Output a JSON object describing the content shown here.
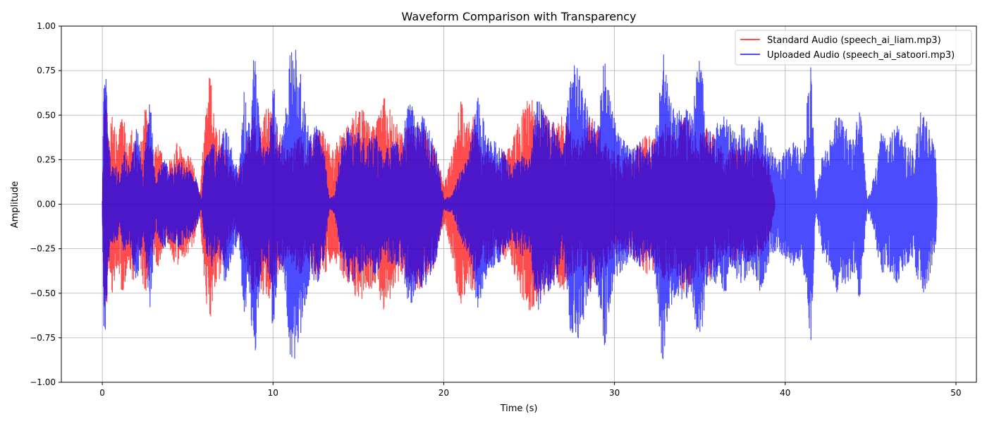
{
  "chart_data": {
    "type": "line",
    "title": "Waveform Comparison with Transparency",
    "xlabel": "Time (s)",
    "ylabel": "Amplitude",
    "xlim": [
      -2.4,
      51.2
    ],
    "ylim": [
      -1.0,
      1.0
    ],
    "x_ticks": [
      0,
      10,
      20,
      30,
      40,
      50
    ],
    "x_tick_labels": [
      "0",
      "10",
      "20",
      "30",
      "40",
      "50"
    ],
    "y_ticks": [
      -1.0,
      -0.75,
      -0.5,
      -0.25,
      0.0,
      0.25,
      0.5,
      0.75,
      1.0
    ],
    "y_tick_labels": [
      "−1.00",
      "−0.75",
      "−0.50",
      "−0.25",
      "0.00",
      "0.25",
      "0.50",
      "0.75",
      "1.00"
    ],
    "grid": true,
    "legend_position": "top-right",
    "series": [
      {
        "name": "Standard Audio (speech_ai_liam.mp3)",
        "color": "#ff0000",
        "opacity": 0.7,
        "duration": 39.4,
        "envelope": [
          [
            0.0,
            0.02
          ],
          [
            0.1,
            0.6
          ],
          [
            0.2,
            0.65
          ],
          [
            0.4,
            0.4
          ],
          [
            0.6,
            0.5
          ],
          [
            0.9,
            0.35
          ],
          [
            1.2,
            0.55
          ],
          [
            1.5,
            0.3
          ],
          [
            1.8,
            0.45
          ],
          [
            2.1,
            0.25
          ],
          [
            2.6,
            0.6
          ],
          [
            2.9,
            0.3
          ],
          [
            3.3,
            0.35
          ],
          [
            3.8,
            0.2
          ],
          [
            4.3,
            0.35
          ],
          [
            4.8,
            0.3
          ],
          [
            5.3,
            0.25
          ],
          [
            5.7,
            0.05
          ],
          [
            6.0,
            0.45
          ],
          [
            6.3,
            0.75
          ],
          [
            6.6,
            0.45
          ],
          [
            7.0,
            0.4
          ],
          [
            7.4,
            0.25
          ],
          [
            7.8,
            0.15
          ],
          [
            8.3,
            0.3
          ],
          [
            8.8,
            0.5
          ],
          [
            9.2,
            0.45
          ],
          [
            9.6,
            0.55
          ],
          [
            10.0,
            0.5
          ],
          [
            10.4,
            0.4
          ],
          [
            10.8,
            0.3
          ],
          [
            11.2,
            0.35
          ],
          [
            11.6,
            0.4
          ],
          [
            12.0,
            0.3
          ],
          [
            12.5,
            0.45
          ],
          [
            13.0,
            0.4
          ],
          [
            13.5,
            0.3
          ],
          [
            14.0,
            0.4
          ],
          [
            14.5,
            0.45
          ],
          [
            15.0,
            0.55
          ],
          [
            15.5,
            0.5
          ],
          [
            16.0,
            0.45
          ],
          [
            16.5,
            0.6
          ],
          [
            17.0,
            0.5
          ],
          [
            17.5,
            0.4
          ],
          [
            18.0,
            0.45
          ],
          [
            18.5,
            0.5
          ],
          [
            19.0,
            0.4
          ],
          [
            19.5,
            0.35
          ],
          [
            20.0,
            0.1
          ],
          [
            20.5,
            0.3
          ],
          [
            21.0,
            0.6
          ],
          [
            21.4,
            0.45
          ],
          [
            21.8,
            0.5
          ],
          [
            22.2,
            0.3
          ],
          [
            22.6,
            0.35
          ],
          [
            23.0,
            0.25
          ],
          [
            23.5,
            0.3
          ],
          [
            24.0,
            0.35
          ],
          [
            24.5,
            0.5
          ],
          [
            25.0,
            0.6
          ],
          [
            25.5,
            0.55
          ],
          [
            26.0,
            0.5
          ],
          [
            26.5,
            0.45
          ],
          [
            27.0,
            0.5
          ],
          [
            27.5,
            0.4
          ],
          [
            28.0,
            0.35
          ],
          [
            28.5,
            0.5
          ],
          [
            29.0,
            0.45
          ],
          [
            29.5,
            0.35
          ],
          [
            30.0,
            0.3
          ],
          [
            30.5,
            0.25
          ],
          [
            31.0,
            0.3
          ],
          [
            31.5,
            0.35
          ],
          [
            32.0,
            0.4
          ],
          [
            32.5,
            0.35
          ],
          [
            33.0,
            0.45
          ],
          [
            33.5,
            0.4
          ],
          [
            34.0,
            0.5
          ],
          [
            34.5,
            0.45
          ],
          [
            35.0,
            0.4
          ],
          [
            35.5,
            0.45
          ],
          [
            36.0,
            0.35
          ],
          [
            36.5,
            0.3
          ],
          [
            37.0,
            0.35
          ],
          [
            37.5,
            0.3
          ],
          [
            38.0,
            0.35
          ],
          [
            38.5,
            0.3
          ],
          [
            39.0,
            0.25
          ],
          [
            39.4,
            0.02
          ]
        ]
      },
      {
        "name": "Uploaded Audio (speech_ai_satoori.mp3)",
        "color": "#0000ff",
        "opacity": 0.7,
        "duration": 48.9,
        "envelope": [
          [
            0.0,
            0.02
          ],
          [
            0.1,
            0.85
          ],
          [
            0.2,
            0.8
          ],
          [
            0.3,
            0.5
          ],
          [
            0.5,
            0.2
          ],
          [
            0.8,
            0.25
          ],
          [
            1.0,
            0.15
          ],
          [
            1.3,
            0.3
          ],
          [
            1.6,
            0.2
          ],
          [
            2.0,
            0.45
          ],
          [
            2.4,
            0.2
          ],
          [
            2.8,
            0.6
          ],
          [
            3.1,
            0.15
          ],
          [
            3.6,
            0.25
          ],
          [
            4.0,
            0.2
          ],
          [
            4.5,
            0.25
          ],
          [
            5.0,
            0.2
          ],
          [
            5.5,
            0.15
          ],
          [
            5.8,
            0.03
          ],
          [
            6.0,
            0.25
          ],
          [
            6.4,
            0.35
          ],
          [
            6.8,
            0.3
          ],
          [
            7.2,
            0.45
          ],
          [
            7.6,
            0.3
          ],
          [
            8.0,
            0.2
          ],
          [
            8.3,
            0.65
          ],
          [
            8.6,
            0.45
          ],
          [
            8.9,
            0.93
          ],
          [
            9.2,
            0.5
          ],
          [
            9.5,
            0.3
          ],
          [
            9.8,
            0.45
          ],
          [
            10.0,
            0.75
          ],
          [
            10.3,
            0.35
          ],
          [
            10.6,
            0.4
          ],
          [
            11.0,
            0.85
          ],
          [
            11.4,
            0.88
          ],
          [
            11.8,
            0.6
          ],
          [
            12.2,
            0.4
          ],
          [
            12.6,
            0.45
          ],
          [
            13.0,
            0.3
          ],
          [
            13.3,
            0.03
          ],
          [
            13.6,
            0.05
          ],
          [
            14.0,
            0.35
          ],
          [
            14.5,
            0.45
          ],
          [
            15.0,
            0.4
          ],
          [
            15.5,
            0.35
          ],
          [
            16.0,
            0.4
          ],
          [
            16.5,
            0.3
          ],
          [
            17.0,
            0.35
          ],
          [
            17.5,
            0.35
          ],
          [
            18.0,
            0.6
          ],
          [
            18.4,
            0.45
          ],
          [
            18.8,
            0.5
          ],
          [
            19.2,
            0.4
          ],
          [
            19.6,
            0.3
          ],
          [
            20.0,
            0.03
          ],
          [
            20.5,
            0.05
          ],
          [
            21.0,
            0.2
          ],
          [
            21.5,
            0.3
          ],
          [
            22.0,
            0.6
          ],
          [
            22.5,
            0.4
          ],
          [
            23.0,
            0.35
          ],
          [
            23.5,
            0.3
          ],
          [
            24.0,
            0.2
          ],
          [
            24.5,
            0.3
          ],
          [
            25.0,
            0.25
          ],
          [
            25.5,
            0.6
          ],
          [
            26.0,
            0.5
          ],
          [
            26.5,
            0.45
          ],
          [
            27.0,
            0.3
          ],
          [
            27.5,
            0.8
          ],
          [
            28.0,
            0.75
          ],
          [
            28.5,
            0.5
          ],
          [
            29.0,
            0.45
          ],
          [
            29.4,
            0.82
          ],
          [
            29.8,
            0.55
          ],
          [
            30.2,
            0.4
          ],
          [
            30.6,
            0.35
          ],
          [
            31.0,
            0.3
          ],
          [
            31.5,
            0.35
          ],
          [
            32.0,
            0.3
          ],
          [
            32.4,
            0.4
          ],
          [
            32.8,
            0.9
          ],
          [
            33.2,
            0.6
          ],
          [
            33.6,
            0.5
          ],
          [
            34.0,
            0.55
          ],
          [
            34.5,
            0.5
          ],
          [
            35.0,
            0.85
          ],
          [
            35.5,
            0.4
          ],
          [
            36.0,
            0.45
          ],
          [
            36.5,
            0.5
          ],
          [
            37.0,
            0.4
          ],
          [
            37.5,
            0.45
          ],
          [
            38.0,
            0.35
          ],
          [
            38.5,
            0.5
          ],
          [
            39.0,
            0.35
          ],
          [
            39.5,
            0.25
          ],
          [
            40.0,
            0.3
          ],
          [
            40.5,
            0.35
          ],
          [
            41.0,
            0.3
          ],
          [
            41.5,
            0.78
          ],
          [
            41.8,
            0.04
          ],
          [
            42.2,
            0.3
          ],
          [
            42.6,
            0.35
          ],
          [
            43.0,
            0.5
          ],
          [
            43.5,
            0.45
          ],
          [
            44.0,
            0.4
          ],
          [
            44.4,
            0.55
          ],
          [
            44.8,
            0.03
          ],
          [
            45.2,
            0.15
          ],
          [
            45.6,
            0.4
          ],
          [
            46.0,
            0.35
          ],
          [
            46.5,
            0.45
          ],
          [
            47.0,
            0.35
          ],
          [
            47.5,
            0.3
          ],
          [
            48.0,
            0.55
          ],
          [
            48.5,
            0.4
          ],
          [
            48.8,
            0.3
          ],
          [
            48.9,
            0.02
          ]
        ]
      }
    ]
  }
}
